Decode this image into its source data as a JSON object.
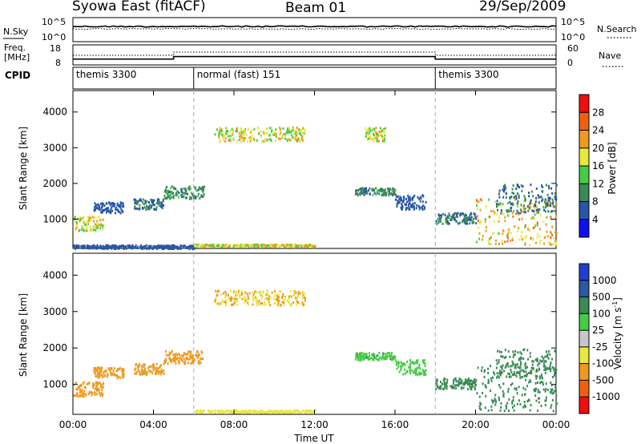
{
  "header": {
    "station": "Syowa East (fitACF)",
    "beam": "Beam 01",
    "date": "29/Sep/2009"
  },
  "top_panels": {
    "nsky_label": "N.Sky",
    "nsky_ticks": [
      "10^5",
      "10^0"
    ],
    "nsearch_label": "N.Search",
    "nsearch_ticks": [
      "10^5",
      "10^0"
    ],
    "freq_label_1": "Freq.",
    "freq_label_2": "[MHz]",
    "freq_ticks": [
      "18",
      "8"
    ],
    "nave_label": "Nave",
    "nave_ticks": [
      "60",
      "0"
    ],
    "cpid_label": "CPID",
    "cpid_segments": [
      {
        "label": "themis 3300",
        "start_h": 0,
        "end_h": 6
      },
      {
        "label": "normal (fast) 151",
        "start_h": 6,
        "end_h": 18
      },
      {
        "label": "themis 3300",
        "start_h": 18,
        "end_h": 24
      }
    ],
    "freq_steps": [
      {
        "start_h": 0,
        "end_h": 5,
        "freq_mhz": 10.5
      },
      {
        "start_h": 5,
        "end_h": 18,
        "freq_mhz": 12
      },
      {
        "start_h": 18,
        "end_h": 24,
        "freq_mhz": 10.5
      }
    ]
  },
  "chart_data": [
    {
      "type": "heatmap",
      "name": "power",
      "xlabel": "Time UT",
      "ylabel": "Slant Range [km]",
      "xlim": [
        0,
        24
      ],
      "ylim": [
        180,
        4600
      ],
      "yticks": [
        "1000",
        "2000",
        "3000",
        "4000"
      ],
      "colorbar_label": "Power [dB]",
      "colorbar_ticks": [
        "4",
        "8",
        "12",
        "16",
        "20",
        "24",
        "28"
      ],
      "colorbar_colors": [
        "#1010ee",
        "#2a55a5",
        "#3a8a55",
        "#44cc44",
        "#e8e840",
        "#ee9a20",
        "#ee6010",
        "#ee1010"
      ],
      "scatter_regions": [
        {
          "t": [
            0.0,
            1.5
          ],
          "r": [
            700,
            1100
          ],
          "value": 18
        },
        {
          "t": [
            1.0,
            2.5
          ],
          "r": [
            1200,
            1500
          ],
          "value": 6
        },
        {
          "t": [
            3.0,
            4.5
          ],
          "r": [
            1300,
            1600
          ],
          "value": 8
        },
        {
          "t": [
            4.5,
            6.5
          ],
          "r": [
            1600,
            1950
          ],
          "value": 10
        },
        {
          "t": [
            0.0,
            6.0
          ],
          "r": [
            200,
            300
          ],
          "value": 6
        },
        {
          "t": [
            6.0,
            12.0
          ],
          "r": [
            250,
            320
          ],
          "value": 18
        },
        {
          "t": [
            7.0,
            11.5
          ],
          "r": [
            3200,
            3600
          ],
          "value": 18
        },
        {
          "t": [
            14.5,
            15.5
          ],
          "r": [
            3200,
            3600
          ],
          "value": 18
        },
        {
          "t": [
            14.0,
            16.0
          ],
          "r": [
            1700,
            1900
          ],
          "value": 10
        },
        {
          "t": [
            16.0,
            17.5
          ],
          "r": [
            1300,
            1700
          ],
          "value": 6
        },
        {
          "t": [
            18.0,
            20.0
          ],
          "r": [
            900,
            1200
          ],
          "value": 8
        },
        {
          "t": [
            20.0,
            24.0
          ],
          "r": [
            300,
            1600
          ],
          "value": 20
        },
        {
          "t": [
            21.0,
            24.0
          ],
          "r": [
            1200,
            2000
          ],
          "value": 8
        }
      ]
    },
    {
      "type": "heatmap",
      "name": "velocity",
      "xlabel": "Time UT",
      "ylabel": "Slant Range [km]",
      "xlim": [
        0,
        24
      ],
      "ylim": [
        180,
        4600
      ],
      "yticks": [
        "1000",
        "2000",
        "3000",
        "4000"
      ],
      "xticks": [
        "00:00",
        "04:00",
        "08:00",
        "12:00",
        "16:00",
        "20:00",
        "00:00"
      ],
      "colorbar_label": "Velocity [m s",
      "colorbar_unit_exp": "-1",
      "colorbar_ticks": [
        "1000",
        "500",
        "100",
        "25",
        "-25",
        "-100",
        "-500",
        "-1000"
      ],
      "colorbar_colors": [
        "#2040cc",
        "#2a5aa0",
        "#3a8a55",
        "#44cc44",
        "#c8c8c8",
        "#e8e840",
        "#ee9a20",
        "#ee6010",
        "#ee1010"
      ],
      "scatter_regions": [
        {
          "t": [
            0.0,
            1.5
          ],
          "r": [
            700,
            1100
          ],
          "value": -300
        },
        {
          "t": [
            1.0,
            2.5
          ],
          "r": [
            1200,
            1500
          ],
          "value": -300
        },
        {
          "t": [
            3.0,
            4.5
          ],
          "r": [
            1300,
            1600
          ],
          "value": -300
        },
        {
          "t": [
            4.5,
            6.5
          ],
          "r": [
            1600,
            1950
          ],
          "value": -200
        },
        {
          "t": [
            6.0,
            12.0
          ],
          "r": [
            250,
            320
          ],
          "value": -50
        },
        {
          "t": [
            7.0,
            11.5
          ],
          "r": [
            3200,
            3600
          ],
          "value": -100
        },
        {
          "t": [
            14.0,
            16.0
          ],
          "r": [
            1700,
            1900
          ],
          "value": 80
        },
        {
          "t": [
            16.0,
            17.5
          ],
          "r": [
            1300,
            1700
          ],
          "value": 60
        },
        {
          "t": [
            18.0,
            20.0
          ],
          "r": [
            900,
            1200
          ],
          "value": 150
        },
        {
          "t": [
            20.0,
            24.0
          ],
          "r": [
            300,
            1600
          ],
          "value": 300
        },
        {
          "t": [
            21.0,
            24.0
          ],
          "r": [
            1200,
            2000
          ],
          "value": 150
        }
      ]
    }
  ]
}
